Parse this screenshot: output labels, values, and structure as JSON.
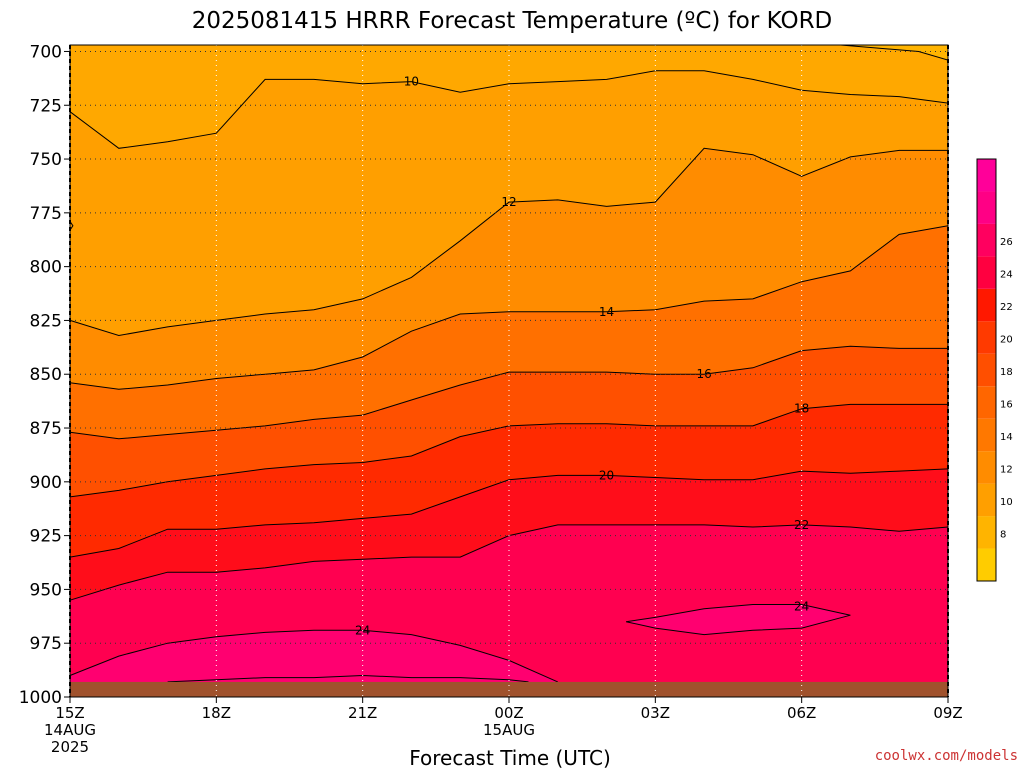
{
  "chart_data": {
    "type": "heatmap",
    "title": "2025081415 HRRR Forecast Temperature (ºC) for KORD",
    "xlabel": "Forecast Time (UTC)",
    "ylabel": "",
    "x_ticks": [
      {
        "value": 15,
        "lines": [
          "15Z",
          "14AUG",
          "2025"
        ]
      },
      {
        "value": 18,
        "lines": [
          "18Z"
        ]
      },
      {
        "value": 21,
        "lines": [
          "21Z"
        ]
      },
      {
        "value": 24,
        "lines": [
          "00Z",
          "15AUG"
        ]
      },
      {
        "value": 27,
        "lines": [
          "03Z"
        ]
      },
      {
        "value": 30,
        "lines": [
          "06Z"
        ]
      },
      {
        "value": 33,
        "lines": [
          "09Z"
        ]
      }
    ],
    "xlim": [
      15,
      33
    ],
    "y_ticks": [
      700,
      725,
      750,
      775,
      800,
      825,
      850,
      875,
      900,
      925,
      950,
      975,
      1000
    ],
    "ylim": [
      697,
      1000
    ],
    "ground_level_hpa": 993,
    "ground_color": "#a0522d",
    "colorbar": {
      "levels": [
        6,
        8,
        10,
        12,
        14,
        16,
        18,
        20,
        22,
        24,
        26,
        28
      ],
      "tick_labels": [
        "8",
        "10",
        "12",
        "14",
        "16",
        "18",
        "20",
        "22",
        "24",
        "26"
      ],
      "colors": [
        "#ffcc00",
        "#ffb400",
        "#ff9f00",
        "#ff8c00",
        "#ff7800",
        "#ff6600",
        "#ff4f00",
        "#ff3a00",
        "#ff1800",
        "#ff0040",
        "#ff005f",
        "#ff0085",
        "#ff0099"
      ]
    },
    "bands": [
      {
        "from": 10,
        "to": 12,
        "color": "#ff9f00"
      },
      {
        "from": 12,
        "to": 14,
        "color": "#ff8c00"
      },
      {
        "from": 14,
        "to": 16,
        "color": "#ff7000"
      },
      {
        "from": 16,
        "to": 18,
        "color": "#ff5000"
      },
      {
        "from": 18,
        "to": 20,
        "color": "#ff2a00"
      },
      {
        "from": 20,
        "to": 22,
        "color": "#ff0d1a"
      },
      {
        "from": 22,
        "to": 24,
        "color": "#ff0050"
      },
      {
        "from": 24,
        "to": 26,
        "color": "#ff0070"
      }
    ],
    "below_lowest_color": "#ffa800",
    "contours": [
      {
        "level": 10,
        "label": "10",
        "label_x": 22.0,
        "x": [
          15,
          16,
          17,
          18,
          19,
          20,
          21,
          22,
          23,
          24,
          25,
          26,
          27,
          28,
          29,
          30,
          31,
          32,
          33
        ],
        "y": [
          728,
          745,
          742,
          738,
          713,
          713,
          715,
          714,
          719,
          715,
          714,
          713,
          709,
          709,
          713,
          718,
          720,
          721,
          724
        ]
      },
      {
        "level": 12,
        "label": "12",
        "label_x": 24.0,
        "x": [
          15,
          16,
          17,
          18,
          19,
          20,
          21,
          22,
          23,
          24,
          25,
          26,
          27,
          28,
          29,
          30,
          31,
          32,
          33
        ],
        "y": [
          825,
          832,
          828,
          825,
          822,
          820,
          815,
          805,
          788,
          770,
          769,
          772,
          770,
          745,
          748,
          758,
          749,
          746,
          746
        ]
      },
      {
        "level": 14,
        "label": "14",
        "label_x": 26.0,
        "x": [
          15,
          16,
          17,
          18,
          19,
          20,
          21,
          22,
          23,
          24,
          25,
          26,
          27,
          28,
          29,
          30,
          31,
          32,
          33
        ],
        "y": [
          854,
          857,
          855,
          852,
          850,
          848,
          842,
          830,
          822,
          821,
          821,
          821,
          820,
          816,
          815,
          807,
          802,
          785,
          781
        ]
      },
      {
        "level": 16,
        "label": "16",
        "label_x": 28.0,
        "x": [
          15,
          16,
          17,
          18,
          19,
          20,
          21,
          22,
          23,
          24,
          25,
          26,
          27,
          28,
          29,
          30,
          31,
          32,
          33
        ],
        "y": [
          877,
          880,
          878,
          876,
          874,
          871,
          869,
          862,
          855,
          849,
          849,
          849,
          850,
          850,
          847,
          839,
          837,
          838,
          838
        ]
      },
      {
        "level": 18,
        "label": "18",
        "label_x": 30.0,
        "x": [
          15,
          16,
          17,
          18,
          19,
          20,
          21,
          22,
          23,
          24,
          25,
          26,
          27,
          28,
          29,
          30,
          31,
          32,
          33
        ],
        "y": [
          907,
          904,
          900,
          897,
          894,
          892,
          891,
          888,
          879,
          874,
          873,
          873,
          874,
          874,
          874,
          866,
          864,
          864,
          864
        ]
      },
      {
        "level": 20,
        "label": "20",
        "label_x": 26.0,
        "x": [
          15,
          16,
          17,
          18,
          19,
          20,
          21,
          22,
          23,
          24,
          25,
          26,
          27,
          28,
          29,
          30,
          31,
          32,
          33
        ],
        "y": [
          935,
          931,
          922,
          922,
          920,
          919,
          917,
          915,
          907,
          899,
          897,
          897,
          898,
          899,
          899,
          895,
          896,
          895,
          894
        ]
      },
      {
        "level": 22,
        "label": "22",
        "label_x": 30.0,
        "x": [
          15,
          16,
          17,
          18,
          19,
          20,
          21,
          22,
          23,
          24,
          25,
          26,
          27,
          28,
          29,
          30,
          31,
          32,
          33
        ],
        "y": [
          955,
          948,
          942,
          942,
          940,
          937,
          936,
          935,
          935,
          925,
          920,
          920,
          920,
          920,
          921,
          920,
          921,
          923,
          921
        ]
      },
      {
        "level": 24,
        "label": "24",
        "label_x": 21.0,
        "x": [
          15,
          16,
          17,
          18,
          19,
          20,
          21,
          22,
          23,
          24,
          25
        ],
        "y": [
          990,
          981,
          975,
          972,
          970,
          969,
          969,
          971,
          976,
          983,
          993
        ]
      }
    ],
    "closed_contours": [
      {
        "level": 24,
        "label": "24",
        "fill": "#ff0070",
        "x": [
          27.0,
          28.0,
          29.0,
          30.0,
          31.0,
          30.0,
          29.0,
          28.0,
          27.0,
          26.4
        ],
        "y": [
          963,
          959,
          957,
          957,
          962,
          968,
          969,
          971,
          968,
          965
        ],
        "label_x": 30.0,
        "label_y": 958
      },
      {
        "level": 12,
        "label": "",
        "fill": "#ff9f00",
        "x": [
          15.0,
          15.06,
          15.0
        ],
        "y": [
          779,
          781,
          783
        ],
        "label_x": 15.0,
        "label_y": 781
      }
    ],
    "top_right_contour": {
      "level": 8,
      "fill": "#ffb400",
      "x": [
        30.8,
        33.0,
        33.0,
        32.4
      ],
      "y": [
        697,
        697,
        704,
        700
      ]
    },
    "bottom_contour": {
      "level": 26,
      "fill": "#ff0085",
      "x": [
        17,
        18,
        19,
        20,
        21,
        22,
        23,
        24,
        24.4
      ],
      "y": [
        993,
        992,
        991,
        991,
        990,
        991,
        991,
        992,
        993
      ]
    }
  },
  "credit": "coolwx.com/models"
}
